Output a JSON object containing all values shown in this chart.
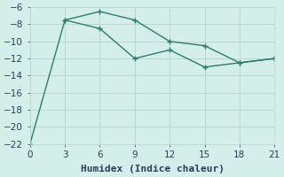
{
  "line1_x": [
    3,
    6,
    9,
    12,
    15,
    18,
    21
  ],
  "line1_y": [
    -7.5,
    -6.5,
    -7.5,
    -10.0,
    -10.5,
    -12.5,
    -12.0
  ],
  "line2_x": [
    0,
    3,
    6,
    9,
    12,
    15,
    18,
    21
  ],
  "line2_y": [
    -22,
    -7.5,
    -8.5,
    -12.0,
    -11.0,
    -13.0,
    -12.5,
    -12.0
  ],
  "line_color": "#2e7d6e",
  "bg_color": "#d4eeea",
  "grid_color": "#b8d8d4",
  "xlabel": "Humidex (Indice chaleur)",
  "xlim": [
    0,
    21
  ],
  "ylim": [
    -22,
    -6
  ],
  "xticks": [
    0,
    3,
    6,
    9,
    12,
    15,
    18,
    21
  ],
  "yticks": [
    -22,
    -20,
    -18,
    -16,
    -14,
    -12,
    -10,
    -8,
    -6
  ],
  "font_color": "#2e3a5a",
  "font_family": "monospace",
  "axis_fontsize": 8,
  "tick_fontsize": 7.5,
  "marker_size": 3,
  "linewidth": 1.0
}
